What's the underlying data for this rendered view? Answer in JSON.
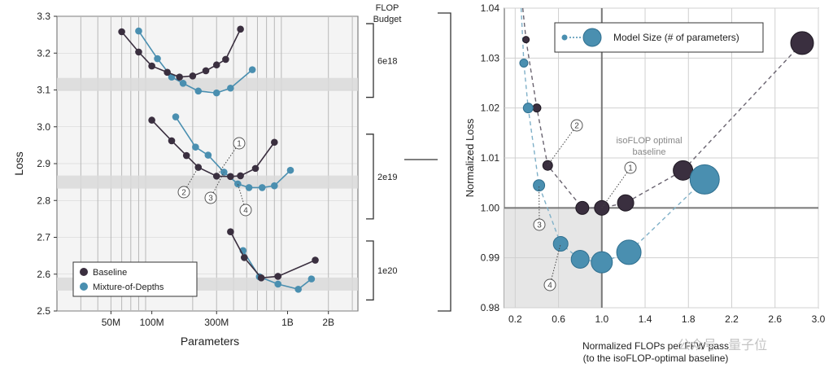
{
  "colors": {
    "baseline": "#3a2f3f",
    "mod": "#4a8fb0",
    "band": "#d9d9d9",
    "grid": "#b8b8b8",
    "shade": "#e6e6e6"
  },
  "chart_data": [
    {
      "type": "line",
      "xscale": "log",
      "xlabel": "Parameters",
      "ylabel": "Loss",
      "xticks": [
        "50M",
        "100M",
        "300M",
        "1B",
        "2B"
      ],
      "ylim": [
        2.5,
        3.3
      ],
      "yticks": [
        "2.5",
        "2.6",
        "2.7",
        "2.8",
        "2.9",
        "3.0",
        "3.1",
        "3.2",
        "3.3"
      ],
      "budget_header": [
        "FLOP",
        "Budget"
      ],
      "legend": {
        "baseline": "Baseline",
        "mod": "Mixture-of-Depths"
      },
      "groups": [
        {
          "budget": "6e18",
          "band": 3.115,
          "baseline": [
            [
              60,
              3.258
            ],
            [
              80,
              3.203
            ],
            [
              100,
              3.165
            ],
            [
              130,
              3.148
            ],
            [
              160,
              3.135
            ],
            [
              200,
              3.138
            ],
            [
              250,
              3.152
            ],
            [
              300,
              3.168
            ],
            [
              350,
              3.183
            ],
            [
              450,
              3.265
            ]
          ],
          "mod": [
            [
              80,
              3.26
            ],
            [
              110,
              3.185
            ],
            [
              140,
              3.135
            ],
            [
              170,
              3.118
            ],
            [
              220,
              3.097
            ],
            [
              300,
              3.092
            ],
            [
              380,
              3.105
            ],
            [
              550,
              3.155
            ]
          ]
        },
        {
          "budget": "2e19",
          "band": 2.85,
          "baseline": [
            [
              100,
              3.018
            ],
            [
              140,
              2.962
            ],
            [
              180,
              2.922
            ],
            [
              220,
              2.89
            ],
            [
              300,
              2.866
            ],
            [
              380,
              2.865
            ],
            [
              450,
              2.867
            ],
            [
              580,
              2.887
            ],
            [
              800,
              2.958
            ]
          ],
          "mod": [
            [
              150,
              3.027
            ],
            [
              210,
              2.945
            ],
            [
              260,
              2.923
            ],
            [
              340,
              2.877
            ],
            [
              430,
              2.845
            ],
            [
              520,
              2.835
            ],
            [
              650,
              2.835
            ],
            [
              800,
              2.84
            ],
            [
              1050,
              2.882
            ]
          ]
        },
        {
          "budget": "1e20",
          "band": 2.573,
          "baseline": [
            [
              380,
              2.715
            ],
            [
              480,
              2.645
            ],
            [
              640,
              2.59
            ],
            [
              850,
              2.594
            ],
            [
              1600,
              2.638
            ]
          ],
          "mod": [
            [
              470,
              2.664
            ],
            [
              620,
              2.593
            ],
            [
              850,
              2.573
            ],
            [
              1200,
              2.559
            ],
            [
              1500,
              2.587
            ]
          ]
        }
      ],
      "annotations": [
        "1",
        "2",
        "3",
        "4"
      ]
    },
    {
      "type": "scatter",
      "xlabel": "Normalized FLOPs per FFW pass",
      "xlabel_sub": "(to the isoFLOP-optimal baseline)",
      "ylabel": "Normalized Loss",
      "xlim": [
        0.1,
        3.0
      ],
      "ylim": [
        0.98,
        1.04
      ],
      "xticks": [
        "0.2",
        "0.6",
        "1.0",
        "1.4",
        "1.8",
        "2.2",
        "2.6",
        "3.0"
      ],
      "yticks": [
        "0.98",
        "0.99",
        "1.00",
        "1.01",
        "1.02",
        "1.03",
        "1.04"
      ],
      "legend": "Model Size (# of parameters)",
      "isoflop_label": [
        "isoFLOP optimal",
        "baseline"
      ],
      "baseline": [
        [
          0.3,
          1.0337,
          4
        ],
        [
          0.4,
          1.02,
          5
        ],
        [
          0.5,
          1.0085,
          6
        ],
        [
          0.82,
          1.0,
          8
        ],
        [
          1.0,
          1.0,
          9
        ],
        [
          1.22,
          1.001,
          10
        ],
        [
          1.75,
          1.0075,
          12
        ],
        [
          2.85,
          1.033,
          14
        ]
      ],
      "mod": [
        [
          0.28,
          1.029,
          5
        ],
        [
          0.32,
          1.02,
          6
        ],
        [
          0.42,
          1.0045,
          7
        ],
        [
          0.62,
          0.9928,
          9
        ],
        [
          0.8,
          0.9897,
          11
        ],
        [
          1.0,
          0.9891,
          13
        ],
        [
          1.25,
          0.9911,
          15
        ],
        [
          1.95,
          1.0057,
          18
        ]
      ],
      "annotations": [
        "1",
        "2",
        "3",
        "4"
      ]
    }
  ],
  "watermark": "公众号 · 量子位"
}
